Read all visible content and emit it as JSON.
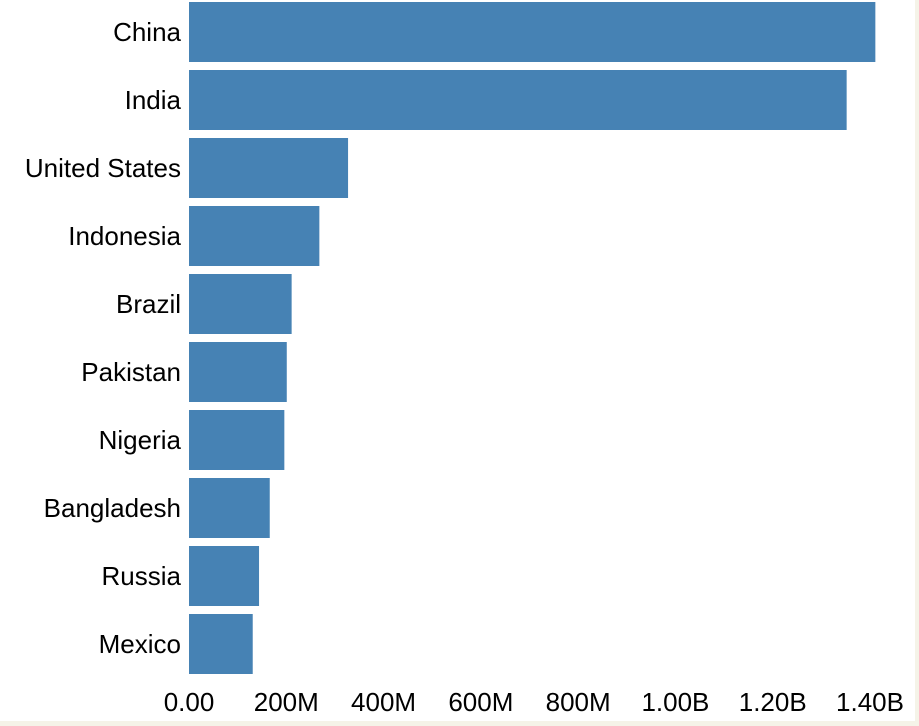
{
  "chart_data": {
    "type": "bar",
    "orientation": "horizontal",
    "title": "",
    "xlabel": "",
    "ylabel": "",
    "categories": [
      "China",
      "India",
      "United States",
      "Indonesia",
      "Brazil",
      "Pakistan",
      "Nigeria",
      "Bangladesh",
      "Russia",
      "Mexico"
    ],
    "values": [
      1411000000,
      1352000000,
      327000000,
      268000000,
      211000000,
      201000000,
      196000000,
      166000000,
      144000000,
      131000000
    ],
    "xlim": [
      0,
      1400000000
    ],
    "x_ticks": [
      0,
      200000000,
      400000000,
      600000000,
      800000000,
      1000000000,
      1200000000,
      1400000000
    ],
    "x_tick_labels": [
      "0.00",
      "200M",
      "400M",
      "600M",
      "800M",
      "1.00B",
      "1.20B",
      "1.40B"
    ],
    "grid": false,
    "legend": "none",
    "colors": {
      "bar": "#4682b4",
      "text": "#000000",
      "background": "#ffffff",
      "page_edge": "#f5f3e8"
    }
  }
}
